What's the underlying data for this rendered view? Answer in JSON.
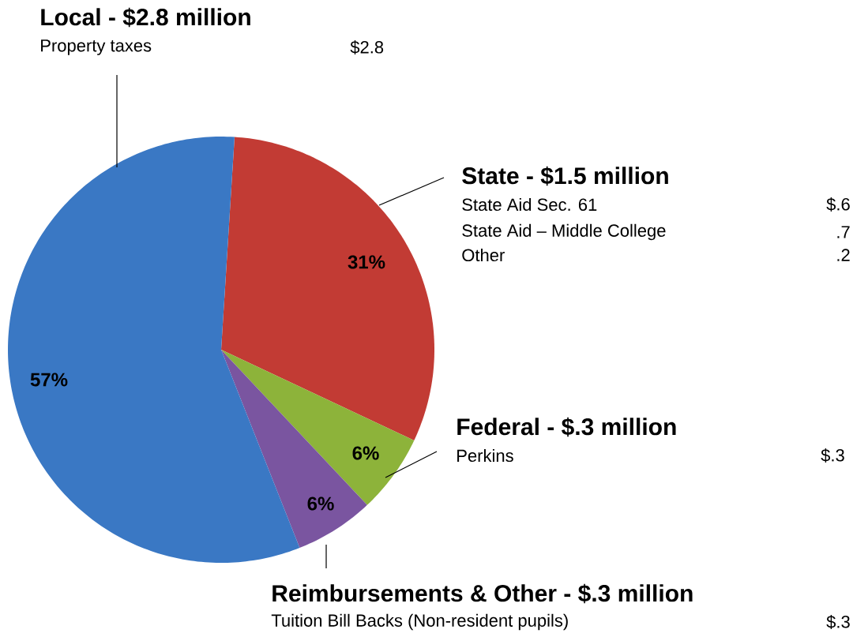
{
  "chart_data": {
    "type": "pie",
    "categories": [
      "State - $1.5 million",
      "Federal - $.3 million",
      "Reimbursements & Other - $.3 million",
      "Local - $2.8 million"
    ],
    "values": [
      31,
      6,
      6,
      57
    ],
    "colors": [
      "#c23b34",
      "#8db33a",
      "#7a55a0",
      "#3a78c4"
    ],
    "value_labels": [
      "31%",
      "6%",
      "6%",
      "57%"
    ],
    "annotations": [
      "Property taxes",
      "$2.8",
      "State Aid Sec. 61",
      "$.6",
      "State Aid – Middle College",
      ".7",
      "Other",
      ".2",
      "Perkins",
      "$.3",
      "Tuition Bill Backs (Non-resident pupils)",
      "$.3"
    ]
  }
}
